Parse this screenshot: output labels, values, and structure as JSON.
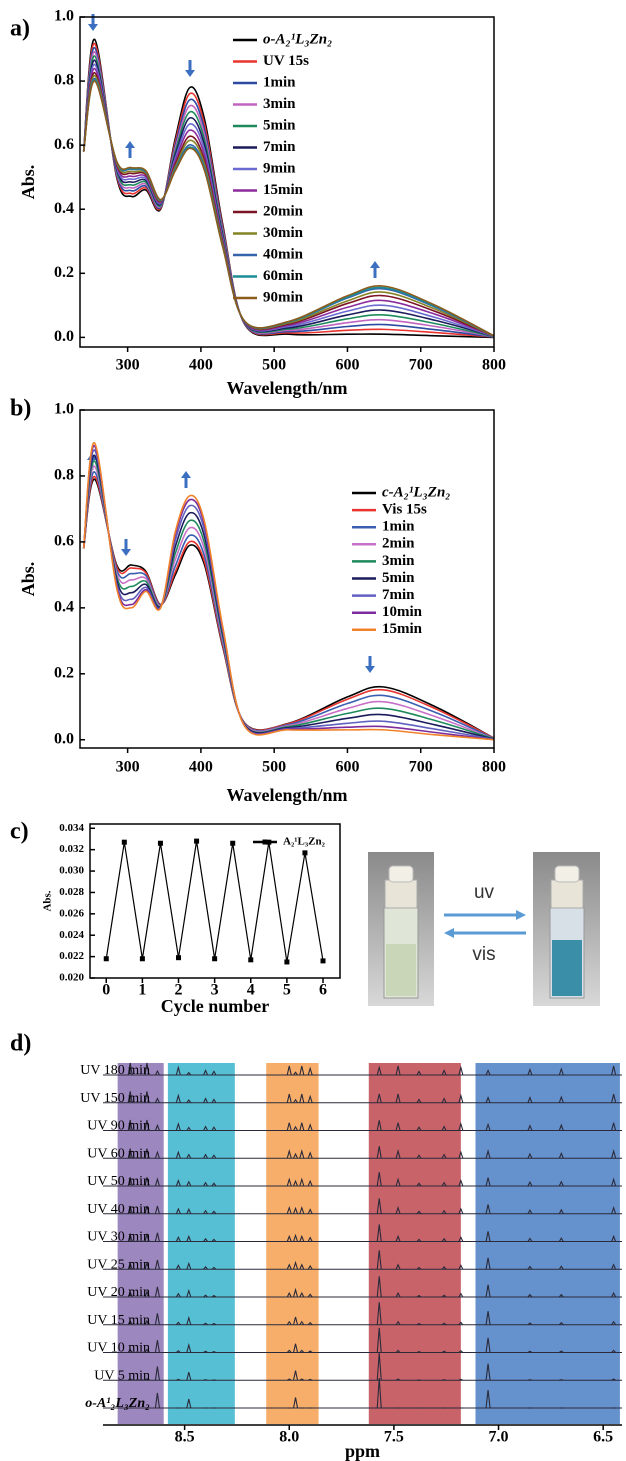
{
  "chart_data": [
    {
      "type": "line",
      "label": "a)",
      "xlabel": "Wavelength/nm",
      "ylabel": "Abs.",
      "xlim": [
        235,
        800
      ],
      "ylim": [
        -0.03,
        1.0
      ],
      "xticks": [
        300,
        400,
        500,
        600,
        700,
        800
      ],
      "yticks": [
        {
          "value": 0,
          "label": "0.0"
        },
        {
          "value": 0.2,
          "label": "0.2"
        },
        {
          "value": 0.4,
          "label": "0.4"
        },
        {
          "value": 0.6,
          "label": "0.6"
        },
        {
          "value": 0.8,
          "label": "0.8"
        },
        {
          "value": 1,
          "label": "1.0"
        }
      ],
      "x": [
        240,
        255,
        285,
        305,
        325,
        345,
        365,
        385,
        405,
        430,
        460,
        520,
        600,
        650,
        720,
        800
      ],
      "series": [
        {
          "name": "o-A₂¹L₃Zn₂",
          "color": "#000000",
          "values": [
            0.58,
            0.93,
            0.5,
            0.44,
            0.46,
            0.4,
            0.62,
            0.78,
            0.68,
            0.35,
            0.04,
            0.01,
            0.01,
            0.01,
            0.005,
            0
          ]
        },
        {
          "name": "UV 15s",
          "color": "#e8332e",
          "values": [
            0.58,
            0.917,
            0.505,
            0.449,
            0.466,
            0.403,
            0.61,
            0.761,
            0.664,
            0.343,
            0.041,
            0.014,
            0.022,
            0.025,
            0.015,
            0.001
          ]
        },
        {
          "name": "1min",
          "color": "#2b4aa0",
          "values": [
            0.58,
            0.904,
            0.51,
            0.458,
            0.472,
            0.406,
            0.6,
            0.742,
            0.648,
            0.336,
            0.042,
            0.018,
            0.034,
            0.04,
            0.024,
            0.001
          ]
        },
        {
          "name": "3min",
          "color": "#c064c0",
          "values": [
            0.58,
            0.891,
            0.515,
            0.467,
            0.478,
            0.409,
            0.59,
            0.723,
            0.632,
            0.329,
            0.043,
            0.022,
            0.046,
            0.055,
            0.034,
            0.002
          ]
        },
        {
          "name": "5min",
          "color": "#1e8a5c",
          "values": [
            0.58,
            0.878,
            0.52,
            0.476,
            0.484,
            0.412,
            0.58,
            0.704,
            0.616,
            0.322,
            0.044,
            0.026,
            0.058,
            0.07,
            0.043,
            0.002
          ]
        },
        {
          "name": "7min",
          "color": "#1c1c5c",
          "values": [
            0.58,
            0.865,
            0.525,
            0.485,
            0.49,
            0.415,
            0.57,
            0.685,
            0.6,
            0.315,
            0.045,
            0.03,
            0.07,
            0.085,
            0.053,
            0.003
          ]
        },
        {
          "name": "9min",
          "color": "#6a6ad0",
          "values": [
            0.58,
            0.852,
            0.53,
            0.494,
            0.496,
            0.418,
            0.56,
            0.666,
            0.584,
            0.308,
            0.046,
            0.034,
            0.082,
            0.1,
            0.062,
            0.003
          ]
        },
        {
          "name": "15min",
          "color": "#8c2c9c",
          "values": [
            0.58,
            0.839,
            0.535,
            0.503,
            0.502,
            0.421,
            0.55,
            0.647,
            0.568,
            0.301,
            0.047,
            0.038,
            0.094,
            0.115,
            0.072,
            0.004
          ]
        },
        {
          "name": "20min",
          "color": "#7c1424",
          "values": [
            0.58,
            0.826,
            0.54,
            0.512,
            0.508,
            0.424,
            0.54,
            0.628,
            0.552,
            0.294,
            0.048,
            0.042,
            0.106,
            0.13,
            0.081,
            0.004
          ]
        },
        {
          "name": "30min",
          "color": "#848424",
          "values": [
            0.58,
            0.817,
            0.544,
            0.518,
            0.512,
            0.426,
            0.533,
            0.615,
            0.541,
            0.289,
            0.049,
            0.045,
            0.114,
            0.141,
            0.088,
            0.004
          ]
        },
        {
          "name": "40min",
          "color": "#3464ac",
          "values": [
            0.58,
            0.808,
            0.547,
            0.525,
            0.516,
            0.428,
            0.526,
            0.601,
            0.53,
            0.284,
            0.049,
            0.048,
            0.123,
            0.151,
            0.094,
            0.005
          ]
        },
        {
          "name": "60min",
          "color": "#1c8c94",
          "values": [
            0.58,
            0.804,
            0.549,
            0.527,
            0.518,
            0.429,
            0.523,
            0.594,
            0.525,
            0.282,
            0.05,
            0.049,
            0.126,
            0.155,
            0.097,
            0.005
          ]
        },
        {
          "name": "90min",
          "color": "#8c5c1c",
          "values": [
            0.58,
            0.8,
            0.55,
            0.53,
            0.52,
            0.43,
            0.52,
            0.59,
            0.52,
            0.28,
            0.05,
            0.05,
            0.13,
            0.16,
            0.1,
            0.005
          ]
        }
      ]
    },
    {
      "type": "line",
      "label": "b)",
      "xlabel": "Wavelength/nm",
      "ylabel": "Abs.",
      "xlim": [
        235,
        800
      ],
      "ylim": [
        -0.025,
        1.0
      ],
      "xticks": [
        300,
        400,
        500,
        600,
        700,
        800
      ],
      "yticks": [
        {
          "value": 0,
          "label": "0.0"
        },
        {
          "value": 0.2,
          "label": "0.2"
        },
        {
          "value": 0.4,
          "label": "0.4"
        },
        {
          "value": 0.6,
          "label": "0.6"
        },
        {
          "value": 0.8,
          "label": "0.8"
        },
        {
          "value": 1,
          "label": "1.0"
        }
      ],
      "x": [
        240,
        255,
        285,
        305,
        325,
        345,
        365,
        385,
        405,
        430,
        460,
        520,
        600,
        650,
        720,
        800
      ],
      "series": [
        {
          "name": "c-A₂¹L₃Zn₂",
          "color": "#000000",
          "values": [
            0.58,
            0.79,
            0.53,
            0.53,
            0.51,
            0.41,
            0.5,
            0.59,
            0.53,
            0.28,
            0.05,
            0.05,
            0.13,
            0.16,
            0.1,
            0.005
          ]
        },
        {
          "name": "Vis 15s",
          "color": "#e8332e",
          "values": [
            0.58,
            0.798,
            0.525,
            0.521,
            0.506,
            0.409,
            0.509,
            0.601,
            0.539,
            0.284,
            0.049,
            0.049,
            0.123,
            0.151,
            0.094,
            0.005
          ]
        },
        {
          "name": "1min",
          "color": "#3a5eb0",
          "values": [
            0.58,
            0.812,
            0.516,
            0.504,
            0.498,
            0.408,
            0.526,
            0.62,
            0.556,
            0.292,
            0.048,
            0.046,
            0.11,
            0.134,
            0.083,
            0.004
          ]
        },
        {
          "name": "2min",
          "color": "#c870c8",
          "values": [
            0.58,
            0.829,
            0.506,
            0.485,
            0.489,
            0.407,
            0.546,
            0.643,
            0.576,
            0.301,
            0.047,
            0.043,
            0.095,
            0.115,
            0.07,
            0.003
          ]
        },
        {
          "name": "3min",
          "color": "#1e8a5c",
          "values": [
            0.58,
            0.845,
            0.495,
            0.465,
            0.48,
            0.405,
            0.565,
            0.665,
            0.595,
            0.31,
            0.045,
            0.04,
            0.08,
            0.095,
            0.058,
            0.003
          ]
        },
        {
          "name": "5min",
          "color": "#1c1c5c",
          "values": [
            0.58,
            0.862,
            0.485,
            0.446,
            0.471,
            0.404,
            0.585,
            0.688,
            0.615,
            0.319,
            0.044,
            0.037,
            0.065,
            0.076,
            0.045,
            0.002
          ]
        },
        {
          "name": "7min",
          "color": "#6060c0",
          "values": [
            0.58,
            0.878,
            0.474,
            0.426,
            0.462,
            0.402,
            0.604,
            0.71,
            0.634,
            0.328,
            0.042,
            0.034,
            0.05,
            0.056,
            0.032,
            0.001
          ]
        },
        {
          "name": "10min",
          "color": "#7c2c9c",
          "values": [
            0.58,
            0.891,
            0.466,
            0.41,
            0.455,
            0.401,
            0.62,
            0.728,
            0.65,
            0.335,
            0.041,
            0.032,
            0.038,
            0.04,
            0.022,
            0
          ]
        },
        {
          "name": "15min",
          "color": "#f0822a",
          "values": [
            0.58,
            0.9,
            0.46,
            0.4,
            0.45,
            0.4,
            0.63,
            0.74,
            0.66,
            0.34,
            0.04,
            0.03,
            0.03,
            0.03,
            0.015,
            0
          ]
        }
      ]
    },
    {
      "type": "line",
      "label": "c)",
      "xlabel": "Cycle number",
      "ylabel": "Abs.",
      "markers": true,
      "annotations": [
        "uv",
        "vis"
      ],
      "xlim": [
        -0.45,
        6.47
      ],
      "ylim": [
        0.02,
        0.0344
      ],
      "xticks": [
        0,
        1,
        2,
        3,
        4,
        5,
        6
      ],
      "yticks": [
        {
          "value": 0.02,
          "label": "0.020"
        },
        {
          "value": 0.022,
          "label": "0.022"
        },
        {
          "value": 0.024,
          "label": "0.024"
        },
        {
          "value": 0.026,
          "label": "0.026"
        },
        {
          "value": 0.028,
          "label": "0.028"
        },
        {
          "value": 0.03,
          "label": "0.030"
        },
        {
          "value": 0.032,
          "label": "0.032"
        },
        {
          "value": 0.034,
          "label": "0.034"
        }
      ],
      "x": [
        0,
        0.5,
        1,
        1.5,
        2,
        2.5,
        3,
        3.5,
        4,
        4.5,
        5,
        5.5,
        6
      ],
      "series": [
        {
          "name": "A₂¹L₃Zn₂",
          "color": "#000000",
          "values": [
            0.0218,
            0.0327,
            0.0218,
            0.0326,
            0.0219,
            0.0328,
            0.0218,
            0.0326,
            0.0217,
            0.0327,
            0.0215,
            0.0317,
            0.0216
          ]
        }
      ]
    },
    {
      "type": "stacked",
      "label": "d)",
      "xlabel": "ppm",
      "color": "#2a2a3a",
      "xlim": [
        8.89,
        6.41
      ],
      "xticks": [
        8.5,
        {
          "value": 8,
          "label": "8.0"
        },
        7.5,
        {
          "value": 7,
          "label": "7.0"
        },
        6.5
      ],
      "bands": [
        {
          "from": 8.82,
          "to": 8.6,
          "color": "#8c72b4"
        },
        {
          "from": 8.58,
          "to": 8.26,
          "color": "#3ab4cc"
        },
        {
          "from": 8.11,
          "to": 7.86,
          "color": "#f6a050"
        },
        {
          "from": 7.62,
          "to": 7.18,
          "color": "#c04850"
        },
        {
          "from": 7.11,
          "to": 6.42,
          "color": "#4a7ec4"
        }
      ],
      "x": [
        8.76,
        8.68,
        8.63,
        8.53,
        8.48,
        8.4,
        8.36,
        8.0,
        7.97,
        7.94,
        7.9,
        7.57,
        7.48,
        7.38,
        7.26,
        7.18,
        7.05,
        6.85,
        6.7,
        6.45
      ],
      "series": [
        {
          "name": "UV 180 min",
          "values": [
            0.4,
            0.4,
            0.13,
            0.25,
            0.08,
            0.15,
            0.12,
            0.3,
            0.09,
            0.3,
            0.22,
            0.25,
            0.3,
            0.12,
            0.15,
            0.25,
            0.15,
            0.18,
            0.2,
            0.3
          ]
        },
        {
          "name": "UV 150 min",
          "values": [
            0.38,
            0.38,
            0.14,
            0.24,
            0.09,
            0.14,
            0.11,
            0.29,
            0.1,
            0.29,
            0.21,
            0.29,
            0.29,
            0.11,
            0.14,
            0.24,
            0.17,
            0.17,
            0.19,
            0.29
          ]
        },
        {
          "name": "UV 90 min",
          "values": [
            0.35,
            0.35,
            0.17,
            0.22,
            0.1,
            0.13,
            0.11,
            0.26,
            0.12,
            0.26,
            0.19,
            0.34,
            0.26,
            0.11,
            0.13,
            0.22,
            0.2,
            0.16,
            0.18,
            0.26
          ]
        },
        {
          "name": "UV 60 min",
          "values": [
            0.32,
            0.32,
            0.2,
            0.2,
            0.12,
            0.12,
            0.1,
            0.24,
            0.14,
            0.24,
            0.18,
            0.4,
            0.24,
            0.1,
            0.12,
            0.2,
            0.24,
            0.14,
            0.16,
            0.24
          ]
        },
        {
          "name": "UV 50 min",
          "values": [
            0.29,
            0.29,
            0.23,
            0.18,
            0.14,
            0.11,
            0.09,
            0.22,
            0.16,
            0.22,
            0.16,
            0.46,
            0.22,
            0.09,
            0.11,
            0.18,
            0.28,
            0.13,
            0.14,
            0.22
          ]
        },
        {
          "name": "UV 40 min",
          "values": [
            0.26,
            0.26,
            0.26,
            0.16,
            0.15,
            0.1,
            0.08,
            0.2,
            0.18,
            0.2,
            0.14,
            0.51,
            0.2,
            0.08,
            0.1,
            0.16,
            0.31,
            0.12,
            0.13,
            0.2
          ]
        },
        {
          "name": "UV 30 min",
          "values": [
            0.23,
            0.23,
            0.29,
            0.14,
            0.17,
            0.09,
            0.07,
            0.17,
            0.2,
            0.17,
            0.13,
            0.57,
            0.17,
            0.07,
            0.09,
            0.14,
            0.34,
            0.1,
            0.11,
            0.17
          ]
        },
        {
          "name": "UV 25 min",
          "values": [
            0.2,
            0.2,
            0.31,
            0.13,
            0.19,
            0.08,
            0.06,
            0.15,
            0.22,
            0.15,
            0.11,
            0.63,
            0.15,
            0.06,
            0.08,
            0.13,
            0.38,
            0.09,
            0.1,
            0.15
          ]
        },
        {
          "name": "UV 20 min",
          "values": [
            0.17,
            0.17,
            0.34,
            0.11,
            0.21,
            0.06,
            0.05,
            0.13,
            0.24,
            0.13,
            0.09,
            0.69,
            0.13,
            0.05,
            0.06,
            0.11,
            0.41,
            0.08,
            0.08,
            0.13
          ]
        },
        {
          "name": "UV 15 min",
          "values": [
            0.13,
            0.13,
            0.38,
            0.08,
            0.23,
            0.05,
            0.04,
            0.1,
            0.26,
            0.1,
            0.07,
            0.75,
            0.1,
            0.04,
            0.05,
            0.08,
            0.45,
            0.06,
            0.07,
            0.1
          ]
        },
        {
          "name": "UV 10 min",
          "values": [
            0.1,
            0.1,
            0.41,
            0.06,
            0.25,
            0.04,
            0.03,
            0.07,
            0.29,
            0.07,
            0.05,
            0.82,
            0.07,
            0.03,
            0.04,
            0.06,
            0.49,
            0.04,
            0.05,
            0.07
          ]
        },
        {
          "name": "UV 5 min",
          "values": [
            0.05,
            0.05,
            0.46,
            0.03,
            0.27,
            0.02,
            0.01,
            0.04,
            0.32,
            0.04,
            0.03,
            0.91,
            0.04,
            0.01,
            0.02,
            0.03,
            0.55,
            0.02,
            0.02,
            0.04
          ]
        },
        {
          "name": "o-A¹₂L₃Zn₂",
          "values": [
            0,
            0,
            0.5,
            0,
            0.3,
            0,
            0,
            0,
            0.35,
            0,
            0,
            1,
            0,
            0,
            0,
            0,
            0.6,
            0,
            0,
            0
          ]
        }
      ]
    }
  ]
}
